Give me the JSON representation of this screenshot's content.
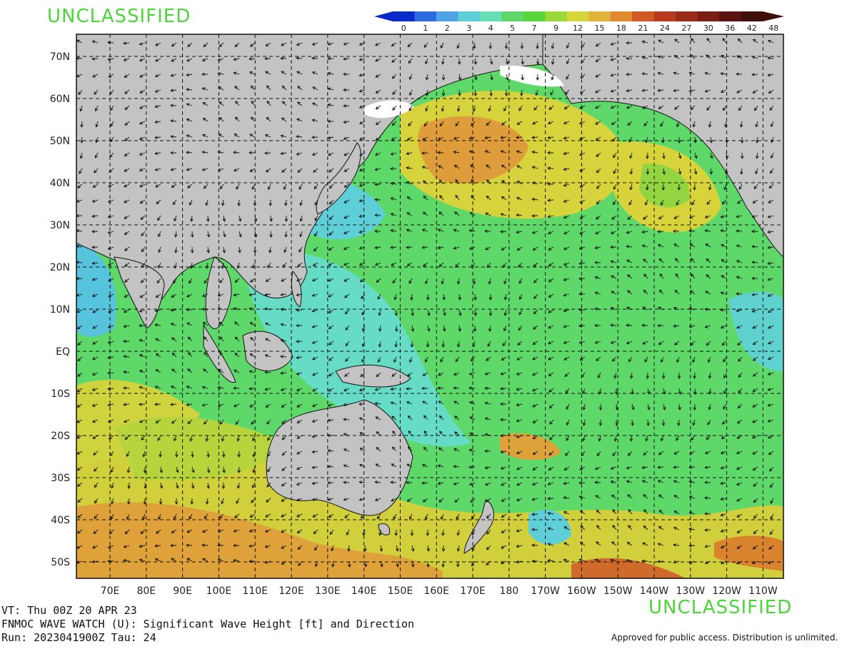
{
  "classification": {
    "top": "UNCLASSIFIED",
    "bottom": "UNCLASSIFIED"
  },
  "colorbar": {
    "unit": "ft",
    "levels": [
      "0",
      "1",
      "2",
      "3",
      "4",
      "5",
      "7",
      "9",
      "12",
      "15",
      "18",
      "21",
      "24",
      "27",
      "30",
      "36",
      "42",
      "48"
    ],
    "colors": [
      "#0a2bc8",
      "#2f6be0",
      "#4ea3e6",
      "#5ecfd6",
      "#66dfb4",
      "#5fd66a",
      "#59d43f",
      "#9bd83a",
      "#d6d63a",
      "#e0b43a",
      "#df8a30",
      "#cf5a23",
      "#b83a1f",
      "#9a2a1a",
      "#7a1f14",
      "#5a160e",
      "#3f0e08"
    ]
  },
  "map": {
    "lat_labels": [
      "70N",
      "60N",
      "50N",
      "40N",
      "30N",
      "20N",
      "10N",
      "EQ",
      "10S",
      "20S",
      "30S",
      "40S",
      "50S"
    ],
    "lon_labels": [
      "70E",
      "80E",
      "90E",
      "100E",
      "110E",
      "120E",
      "130E",
      "140E",
      "150E",
      "160E",
      "170E",
      "180",
      "170W",
      "160W",
      "150W",
      "140W",
      "130W",
      "120W",
      "110W"
    ],
    "ocean_color": "#5fd86a",
    "land_color": "#c3c3c3",
    "ice_color": "#ffffff",
    "grid": true
  },
  "footer": {
    "vt": "VT: Thu 00Z 20 APR 23",
    "title": "FNMOC WAVE WATCH (U): Significant Wave Height [ft] and Direction",
    "run": "Run: 2023041900Z Tau: 24",
    "approved": "Approved for public access. Distribution is unlimited."
  }
}
